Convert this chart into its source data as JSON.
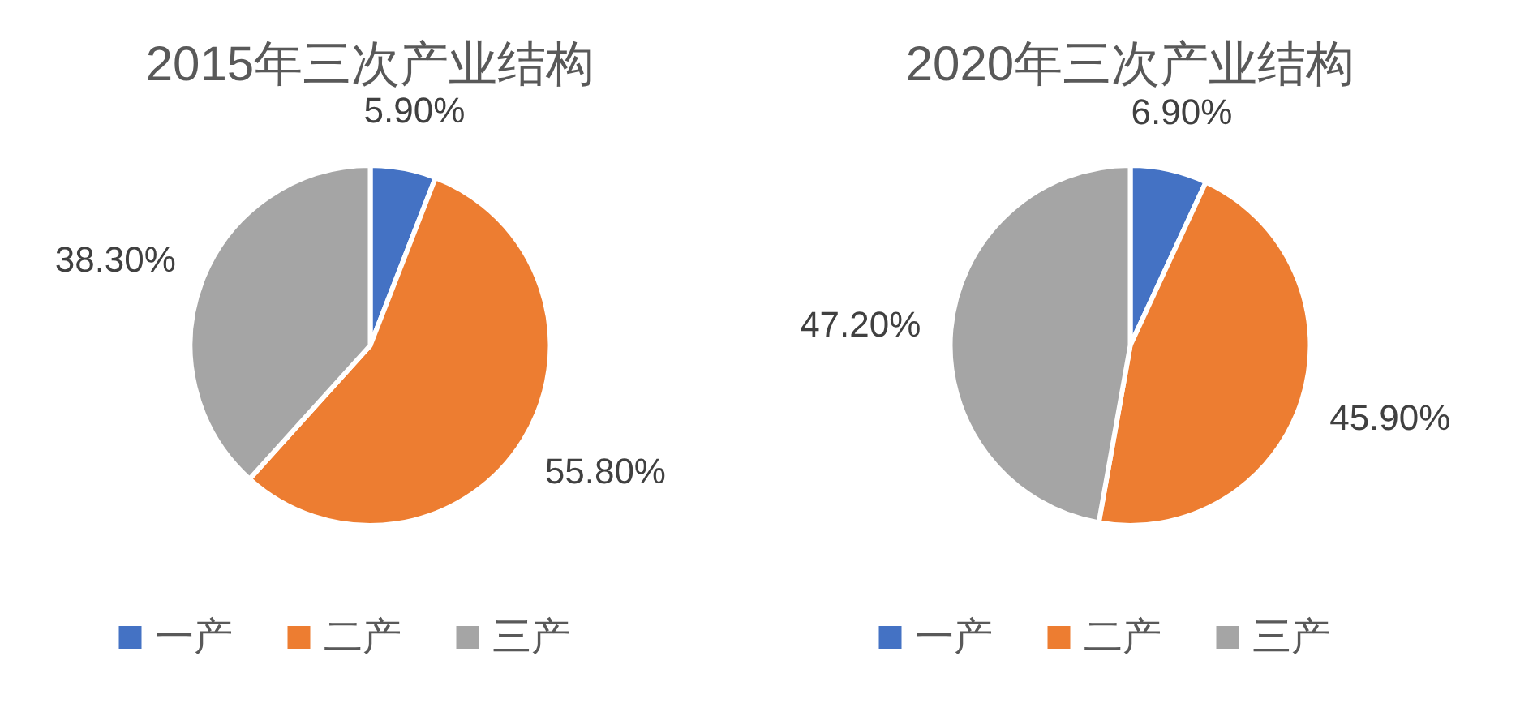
{
  "chart_data": [
    {
      "type": "pie",
      "title": "2015年三次产业结构",
      "categories": [
        "一产",
        "二产",
        "三产"
      ],
      "values": [
        5.9,
        55.8,
        38.3
      ],
      "value_labels": [
        "5.90%",
        "55.80%",
        "38.30%"
      ],
      "colors": [
        "#4472c4",
        "#ed7d31",
        "#a5a5a5"
      ],
      "legend": "bottom"
    },
    {
      "type": "pie",
      "title": "2020年三次产业结构",
      "categories": [
        "一产",
        "二产",
        "三产"
      ],
      "values": [
        6.9,
        45.9,
        47.2
      ],
      "value_labels": [
        "6.90%",
        "45.90%",
        "47.20%"
      ],
      "colors": [
        "#4472c4",
        "#ed7d31",
        "#a5a5a5"
      ],
      "legend": "bottom"
    }
  ]
}
